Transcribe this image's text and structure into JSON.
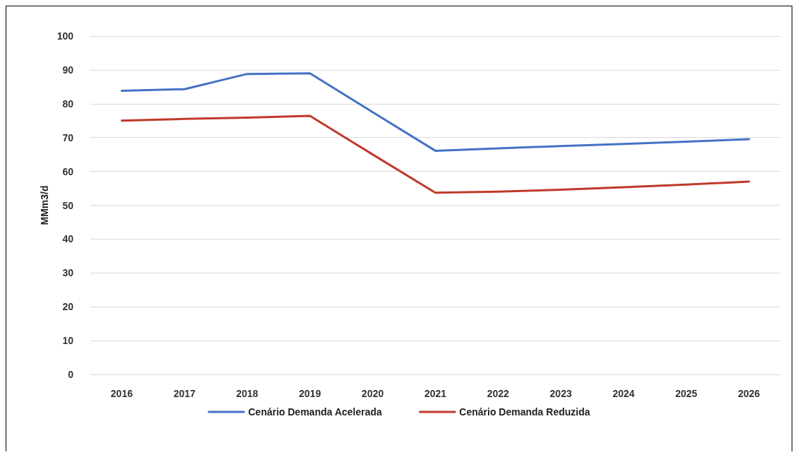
{
  "chart_data": {
    "type": "line",
    "ylabel": "MMm3/d",
    "categories": [
      "2016",
      "2017",
      "2018",
      "2019",
      "2020",
      "2021",
      "2022",
      "2023",
      "2024",
      "2025",
      "2026"
    ],
    "series": [
      {
        "name": "Cenário Demanda Acelerada",
        "color": "#4472c4",
        "values": [
          83.8,
          84.3,
          88.8,
          89.0,
          77.5,
          66.1,
          66.8,
          67.5,
          68.1,
          68.8,
          69.5
        ]
      },
      {
        "name": "Cenário Demanda Reduzida",
        "color": "#c0392b",
        "values": [
          75.0,
          75.5,
          75.9,
          76.4,
          65.0,
          53.7,
          54.0,
          54.6,
          55.3,
          56.1,
          57.0
        ]
      }
    ],
    "ylim": [
      0,
      100
    ],
    "yticks": [
      0,
      10,
      20,
      30,
      40,
      50,
      60,
      70,
      80,
      90,
      100
    ],
    "grid": "y",
    "legend": "bottom",
    "marker": "none",
    "line_style": "solid"
  }
}
